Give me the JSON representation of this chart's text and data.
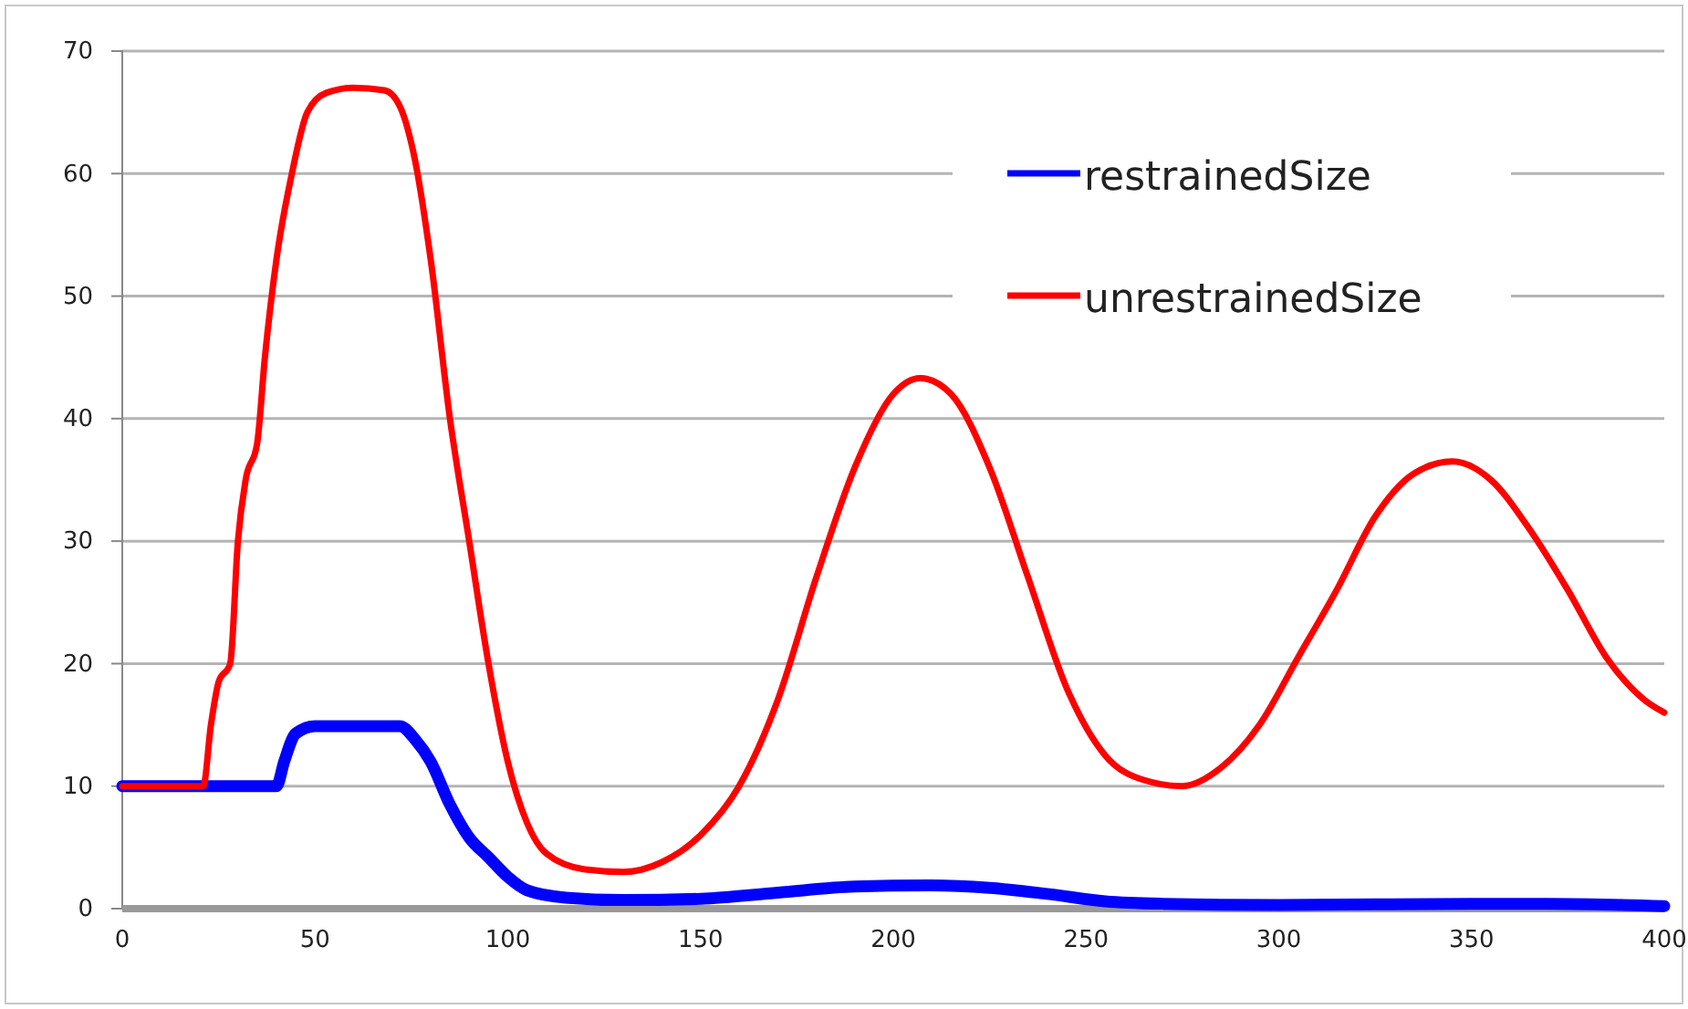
{
  "chart_data": {
    "type": "line",
    "xlim": [
      0,
      400
    ],
    "xticks": [
      0,
      50,
      100,
      150,
      200,
      250,
      300,
      350,
      400
    ],
    "ylim": [
      0,
      70
    ],
    "yticks": [
      0,
      10,
      20,
      30,
      40,
      50,
      60,
      70
    ],
    "grid": "y",
    "legend": "top right",
    "series": [
      {
        "name": "restrainedSize",
        "color": "#0000ff",
        "x": [
          0,
          40,
          42,
          45,
          50,
          60,
          72,
          76,
          80,
          85,
          90,
          95,
          100,
          105,
          115,
          130,
          150,
          170,
          190,
          210,
          225,
          240,
          255,
          270,
          300,
          350,
          370,
          400
        ],
        "values": [
          10,
          10,
          12,
          14.3,
          14.9,
          14.9,
          14.9,
          13.8,
          12,
          8.5,
          5.8,
          4.2,
          2.6,
          1.5,
          0.9,
          0.7,
          0.8,
          1.3,
          1.8,
          1.9,
          1.7,
          1.2,
          0.6,
          0.4,
          0.3,
          0.4,
          0.4,
          0.2
        ]
      },
      {
        "name": "unrestrainedSize",
        "color": "#ff0000",
        "x": [
          0,
          21,
          23,
          25,
          28,
          30,
          32,
          35,
          37,
          40,
          44,
          48,
          53,
          60,
          68,
          72,
          76,
          80,
          85,
          90,
          95,
          100,
          105,
          110,
          120,
          130,
          140,
          150,
          160,
          170,
          180,
          190,
          200,
          207,
          215,
          225,
          235,
          245,
          255,
          265,
          275,
          285,
          295,
          305,
          315,
          325,
          335,
          345,
          355,
          365,
          375,
          385,
          395,
          400
        ],
        "values": [
          10,
          10,
          15,
          18.5,
          20,
          30,
          35,
          38,
          45,
          53,
          60,
          65,
          66.6,
          67,
          66.8,
          65.5,
          61,
          53,
          40,
          30,
          20,
          12,
          7,
          4.5,
          3.2,
          3,
          3.8,
          6,
          10,
          17,
          27,
          36,
          42,
          43.3,
          42,
          36,
          27,
          18,
          12.5,
          10.5,
          10,
          11.5,
          15,
          20.5,
          26,
          32,
          35.5,
          36.5,
          35,
          31,
          26,
          20.5,
          17,
          16
        ]
      }
    ]
  }
}
